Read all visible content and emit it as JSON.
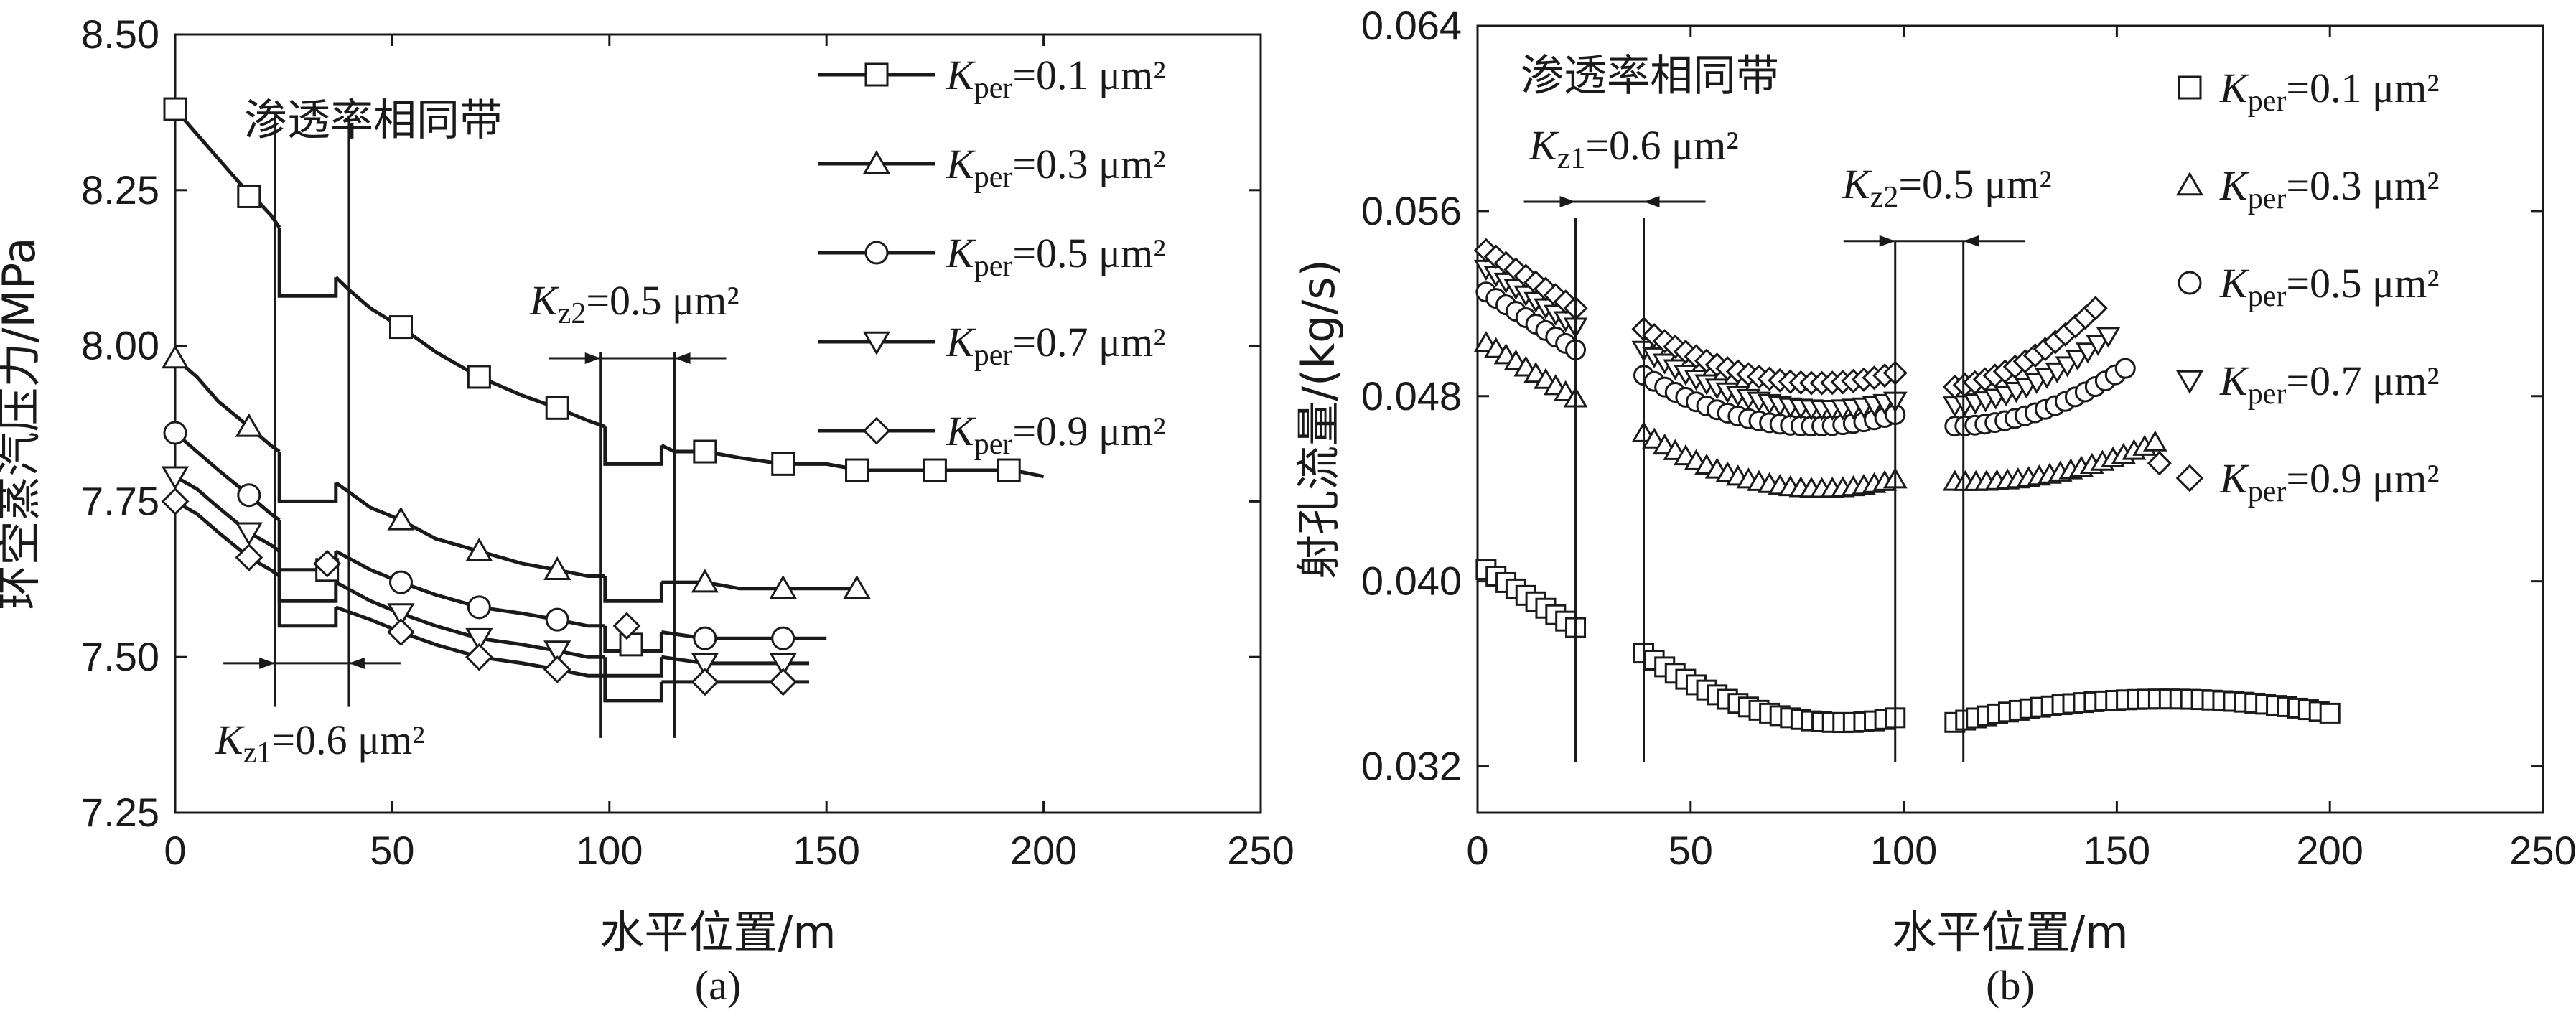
{
  "chart_data": [
    {
      "panel": "(a)",
      "type": "line",
      "xlabel": "水平位置/m",
      "ylabel": "环空蒸汽压力/MPa",
      "xlim": [
        0,
        250
      ],
      "ylim": [
        7.25,
        8.5
      ],
      "xticks": [
        "0",
        "50",
        "100",
        "150",
        "200",
        "250"
      ],
      "yticks": [
        "7.25",
        "7.50",
        "7.75",
        "8.00",
        "8.25",
        "8.50"
      ],
      "band_label": "渗透率相同带",
      "annotations": {
        "kz1": {
          "var": "K",
          "sub": "z1",
          "text": "=0.6 μm²",
          "x_range": [
            23,
            40
          ]
        },
        "kz2": {
          "var": "K",
          "sub": "z2",
          "text": "=0.5 μm²",
          "x_range": [
            98,
            115
          ]
        }
      },
      "series": [
        {
          "name": "Kper=0.1 μm²",
          "k": "K",
          "sub": "per",
          "value": "=0.1 μm²",
          "marker": "square",
          "segments": [
            {
              "x": [
                0,
                5,
                10,
                15,
                18,
                22,
                24
              ],
              "y": [
                8.38,
                8.34,
                8.3,
                8.26,
                8.24,
                8.21,
                8.19
              ]
            },
            {
              "x": [
                37,
                40,
                45,
                52,
                60,
                70,
                80,
                88,
                95,
                99
              ],
              "y": [
                8.11,
                8.09,
                8.06,
                8.03,
                7.99,
                7.95,
                7.92,
                7.9,
                7.88,
                7.87
              ]
            },
            {
              "x": [
                112,
                115,
                122,
                130,
                140,
                150,
                158,
                165,
                176,
                185,
                193,
                200
              ],
              "y": [
                7.84,
                7.83,
                7.83,
                7.82,
                7.81,
                7.81,
                7.8,
                7.8,
                7.8,
                7.8,
                7.8,
                7.79
              ]
            }
          ],
          "markers": {
            "x": [
              0,
              17,
              35,
              52,
              70,
              88,
              105,
              122,
              140,
              157,
              175,
              192
            ],
            "y": [
              8.38,
              8.24,
              7.64,
              8.03,
              7.95,
              7.9,
              7.52,
              7.83,
              7.81,
              7.8,
              7.8,
              7.8
            ]
          }
        },
        {
          "name": "Kper=0.3 μm²",
          "k": "K",
          "sub": "per",
          "value": "=0.3 μm²",
          "marker": "triangle-up",
          "segments": [
            {
              "x": [
                0,
                5,
                10,
                17,
                22,
                24
              ],
              "y": [
                7.98,
                7.95,
                7.91,
                7.87,
                7.84,
                7.83
              ]
            },
            {
              "x": [
                37,
                45,
                52,
                60,
                70,
                80,
                88,
                95,
                99
              ],
              "y": [
                7.78,
                7.74,
                7.72,
                7.69,
                7.67,
                7.65,
                7.64,
                7.63,
                7.63
              ]
            },
            {
              "x": [
                112,
                122,
                130,
                140,
                150,
                158
              ],
              "y": [
                7.62,
                7.62,
                7.61,
                7.61,
                7.61,
                7.61
              ]
            }
          ],
          "markers": {
            "x": [
              0,
              17,
              52,
              70,
              88,
              122,
              140,
              157
            ],
            "y": [
              7.98,
              7.87,
              7.72,
              7.67,
              7.64,
              7.62,
              7.61,
              7.61
            ]
          }
        },
        {
          "name": "Kper=0.5 μm²",
          "k": "K",
          "sub": "per",
          "value": "=0.5 μm²",
          "marker": "circle",
          "segments": [
            {
              "x": [
                0,
                5,
                10,
                17,
                22,
                24
              ],
              "y": [
                7.86,
                7.83,
                7.8,
                7.76,
                7.73,
                7.72
              ]
            },
            {
              "x": [
                37,
                45,
                52,
                60,
                70,
                80,
                88,
                95,
                99
              ],
              "y": [
                7.67,
                7.64,
                7.62,
                7.6,
                7.58,
                7.57,
                7.56,
                7.55,
                7.55
              ]
            },
            {
              "x": [
                112,
                122,
                130,
                140,
                150
              ],
              "y": [
                7.54,
                7.53,
                7.53,
                7.53,
                7.53
              ]
            }
          ],
          "markers": {
            "x": [
              0,
              17,
              52,
              70,
              88,
              122,
              140
            ],
            "y": [
              7.86,
              7.76,
              7.62,
              7.58,
              7.56,
              7.53,
              7.53
            ]
          }
        },
        {
          "name": "Kper=0.7 μm²",
          "k": "K",
          "sub": "per",
          "value": "=0.7 μm²",
          "marker": "triangle-down",
          "segments": [
            {
              "x": [
                0,
                5,
                10,
                17,
                22,
                24
              ],
              "y": [
                7.79,
                7.77,
                7.74,
                7.7,
                7.68,
                7.67
              ]
            },
            {
              "x": [
                37,
                45,
                52,
                60,
                70,
                80,
                88,
                95,
                99
              ],
              "y": [
                7.62,
                7.59,
                7.57,
                7.55,
                7.53,
                7.52,
                7.51,
                7.5,
                7.5
              ]
            },
            {
              "x": [
                112,
                122,
                130,
                140,
                146
              ],
              "y": [
                7.5,
                7.49,
                7.49,
                7.49,
                7.49
              ]
            }
          ],
          "markers": {
            "x": [
              0,
              17,
              52,
              70,
              88,
              122,
              140
            ],
            "y": [
              7.79,
              7.7,
              7.57,
              7.53,
              7.51,
              7.49,
              7.49
            ]
          }
        },
        {
          "name": "Kper=0.9 μm²",
          "k": "K",
          "sub": "per",
          "value": "=0.9 μm²",
          "marker": "diamond",
          "segments": [
            {
              "x": [
                0,
                5,
                10,
                17,
                22,
                24
              ],
              "y": [
                7.75,
                7.73,
                7.7,
                7.66,
                7.64,
                7.63
              ]
            },
            {
              "x": [
                37,
                45,
                52,
                60,
                70,
                80,
                88,
                95,
                99
              ],
              "y": [
                7.58,
                7.56,
                7.54,
                7.52,
                7.5,
                7.49,
                7.48,
                7.47,
                7.47
              ]
            },
            {
              "x": [
                112,
                122,
                130,
                140,
                146
              ],
              "y": [
                7.46,
                7.46,
                7.46,
                7.46,
                7.46
              ]
            }
          ],
          "markers": {
            "x": [
              0,
              17,
              35,
              52,
              70,
              88,
              104,
              122,
              140
            ],
            "y": [
              7.75,
              7.66,
              7.65,
              7.54,
              7.5,
              7.48,
              7.55,
              7.46,
              7.46
            ]
          }
        }
      ]
    },
    {
      "panel": "(b)",
      "type": "scatter",
      "xlabel": "水平位置/m",
      "ylabel": "射孔流量/(kg/s)",
      "xlim": [
        0,
        250
      ],
      "ylim": [
        0.03,
        0.064
      ],
      "xticks": [
        "0",
        "50",
        "100",
        "150",
        "200",
        "250"
      ],
      "yticks": [
        "0.032",
        "0.040",
        "0.048",
        "0.056",
        "0.064"
      ],
      "band_label": "渗透率相同带",
      "annotations": {
        "kz1": {
          "var": "K",
          "sub": "z1",
          "text": "=0.6 μm²",
          "x_range": [
            23,
            39
          ]
        },
        "kz2": {
          "var": "K",
          "sub": "z2",
          "text": "=0.5 μm²",
          "x_range": [
            98,
            114
          ]
        }
      },
      "series": [
        {
          "name": "Kper=0.1 μm²",
          "k": "K",
          "sub": "per",
          "value": "=0.1 μm²",
          "marker": "square",
          "groups": [
            {
              "x_start": 2,
              "x_end": 23,
              "count": 10,
              "y_start": 0.0405,
              "y_end": 0.038,
              "curve": 0
            },
            {
              "x_start": 39,
              "x_end": 98,
              "count": 25,
              "y_start": 0.0369,
              "y_end": 0.0341,
              "curve": 0.0012
            },
            {
              "x_start": 112,
              "x_end": 200,
              "count": 36,
              "y_start": 0.0339,
              "y_end": 0.0343,
              "curve": -0.0008
            }
          ]
        },
        {
          "name": "Kper=0.3 μm²",
          "k": "K",
          "sub": "per",
          "value": "=0.3 μm²",
          "marker": "triangle-up",
          "groups": [
            {
              "x_start": 2,
              "x_end": 23,
              "count": 10,
              "y_start": 0.0503,
              "y_end": 0.0479,
              "curve": 0
            },
            {
              "x_start": 39,
              "x_end": 98,
              "count": 25,
              "y_start": 0.0464,
              "y_end": 0.0444,
              "curve": 0.0012
            },
            {
              "x_start": 112,
              "x_end": 159,
              "count": 20,
              "y_start": 0.0443,
              "y_end": 0.046,
              "curve": 0.0005
            }
          ]
        },
        {
          "name": "Kper=0.5 μm²",
          "k": "K",
          "sub": "per",
          "value": "=0.5 μm²",
          "marker": "circle",
          "groups": [
            {
              "x_start": 2,
              "x_end": 23,
              "count": 10,
              "y_start": 0.0525,
              "y_end": 0.05,
              "curve": 0
            },
            {
              "x_start": 39,
              "x_end": 98,
              "count": 25,
              "y_start": 0.0489,
              "y_end": 0.0472,
              "curve": 0.0012
            },
            {
              "x_start": 112,
              "x_end": 152,
              "count": 18,
              "y_start": 0.0467,
              "y_end": 0.0492,
              "curve": 0.0006
            }
          ]
        },
        {
          "name": "Kper=0.7 μm²",
          "k": "K",
          "sub": "per",
          "value": "=0.7 μm²",
          "marker": "triangle-down",
          "groups": [
            {
              "x_start": 2,
              "x_end": 23,
              "count": 10,
              "y_start": 0.0535,
              "y_end": 0.051,
              "curve": 0
            },
            {
              "x_start": 39,
              "x_end": 98,
              "count": 25,
              "y_start": 0.05,
              "y_end": 0.0478,
              "curve": 0.0012
            },
            {
              "x_start": 112,
              "x_end": 148,
              "count": 16,
              "y_start": 0.0476,
              "y_end": 0.0506,
              "curve": 0.0006
            }
          ]
        },
        {
          "name": "Kper=0.9 μm²",
          "k": "K",
          "sub": "per",
          "value": "=0.9 μm²",
          "marker": "diamond",
          "groups": [
            {
              "x_start": 2,
              "x_end": 23,
              "count": 10,
              "y_start": 0.0543,
              "y_end": 0.0518,
              "curve": 0
            },
            {
              "x_start": 39,
              "x_end": 98,
              "count": 25,
              "y_start": 0.0509,
              "y_end": 0.049,
              "curve": 0.0012
            },
            {
              "x_start": 112,
              "x_end": 145,
              "count": 15,
              "y_start": 0.0484,
              "y_end": 0.0518,
              "curve": 0.0006
            }
          ],
          "extra": {
            "x": [
              160
            ],
            "y": [
              0.0451
            ]
          }
        }
      ]
    }
  ]
}
